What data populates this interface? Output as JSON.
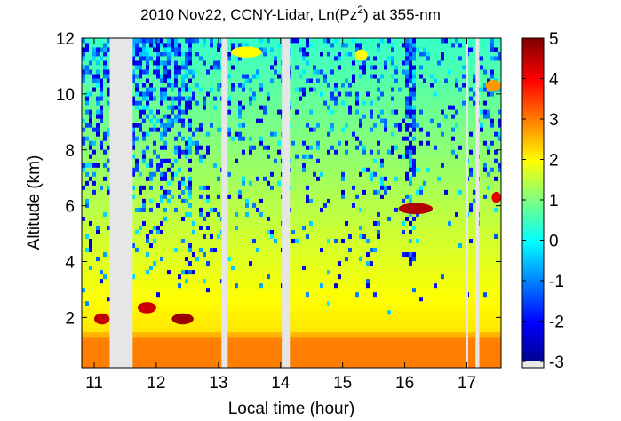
{
  "chart_data": {
    "type": "heatmap",
    "title": "2010 Nov22, CCNY-Lidar, Ln(Pz",
    "title_superscript": "2",
    "title_suffix": ") at 355-nm",
    "xlabel": "Local time (hour)",
    "ylabel": "Altitude (km)",
    "xlim": [
      10.8,
      17.55
    ],
    "ylim": [
      0.2,
      12
    ],
    "xticks": [
      11,
      12,
      13,
      14,
      15,
      16,
      17
    ],
    "yticks": [
      2,
      4,
      6,
      8,
      10,
      12
    ],
    "colorbar": {
      "min": -3,
      "max": 5,
      "ticks": [
        -3,
        -2,
        -1,
        0,
        1,
        2,
        3,
        4,
        5
      ],
      "colormap": "jet"
    },
    "data_gaps_hour": [
      [
        11.25,
        11.62
      ],
      [
        13.05,
        13.15
      ],
      [
        14.02,
        14.15
      ],
      [
        16.98,
        17.02
      ],
      [
        17.14,
        17.2
      ]
    ],
    "features": [
      {
        "name": "boundary-layer",
        "time_start": 10.8,
        "time_end": 17.55,
        "alt_bottom_km": 0.2,
        "alt_top_km": 1.3,
        "value": 3.0
      },
      {
        "name": "cloud-1",
        "time_start": 11.0,
        "time_end": 11.25,
        "alt_km": 1.95,
        "value": 4.5
      },
      {
        "name": "cloud-2",
        "time_start": 11.7,
        "time_end": 12.0,
        "alt_km": 2.35,
        "value": 4.4
      },
      {
        "name": "cloud-3",
        "time_start": 12.25,
        "time_end": 12.6,
        "alt_km": 1.95,
        "value": 4.8
      },
      {
        "name": "cloud-4",
        "time_start": 15.9,
        "time_end": 16.45,
        "alt_km": 5.9,
        "value": 4.6
      },
      {
        "name": "cloud-5",
        "time_start": 17.4,
        "time_end": 17.55,
        "alt_km": 6.3,
        "value": 4.2
      },
      {
        "name": "aerosol-plume-1",
        "time_start": 13.2,
        "time_end": 13.7,
        "alt_km": 11.5,
        "value": 2.0
      },
      {
        "name": "aerosol-plume-2",
        "time_start": 15.2,
        "time_end": 15.4,
        "alt_km": 11.4,
        "value": 2.0
      },
      {
        "name": "aerosol-plume-3",
        "time_start": 17.3,
        "time_end": 17.55,
        "alt_km": 10.3,
        "value": 2.8
      }
    ]
  }
}
